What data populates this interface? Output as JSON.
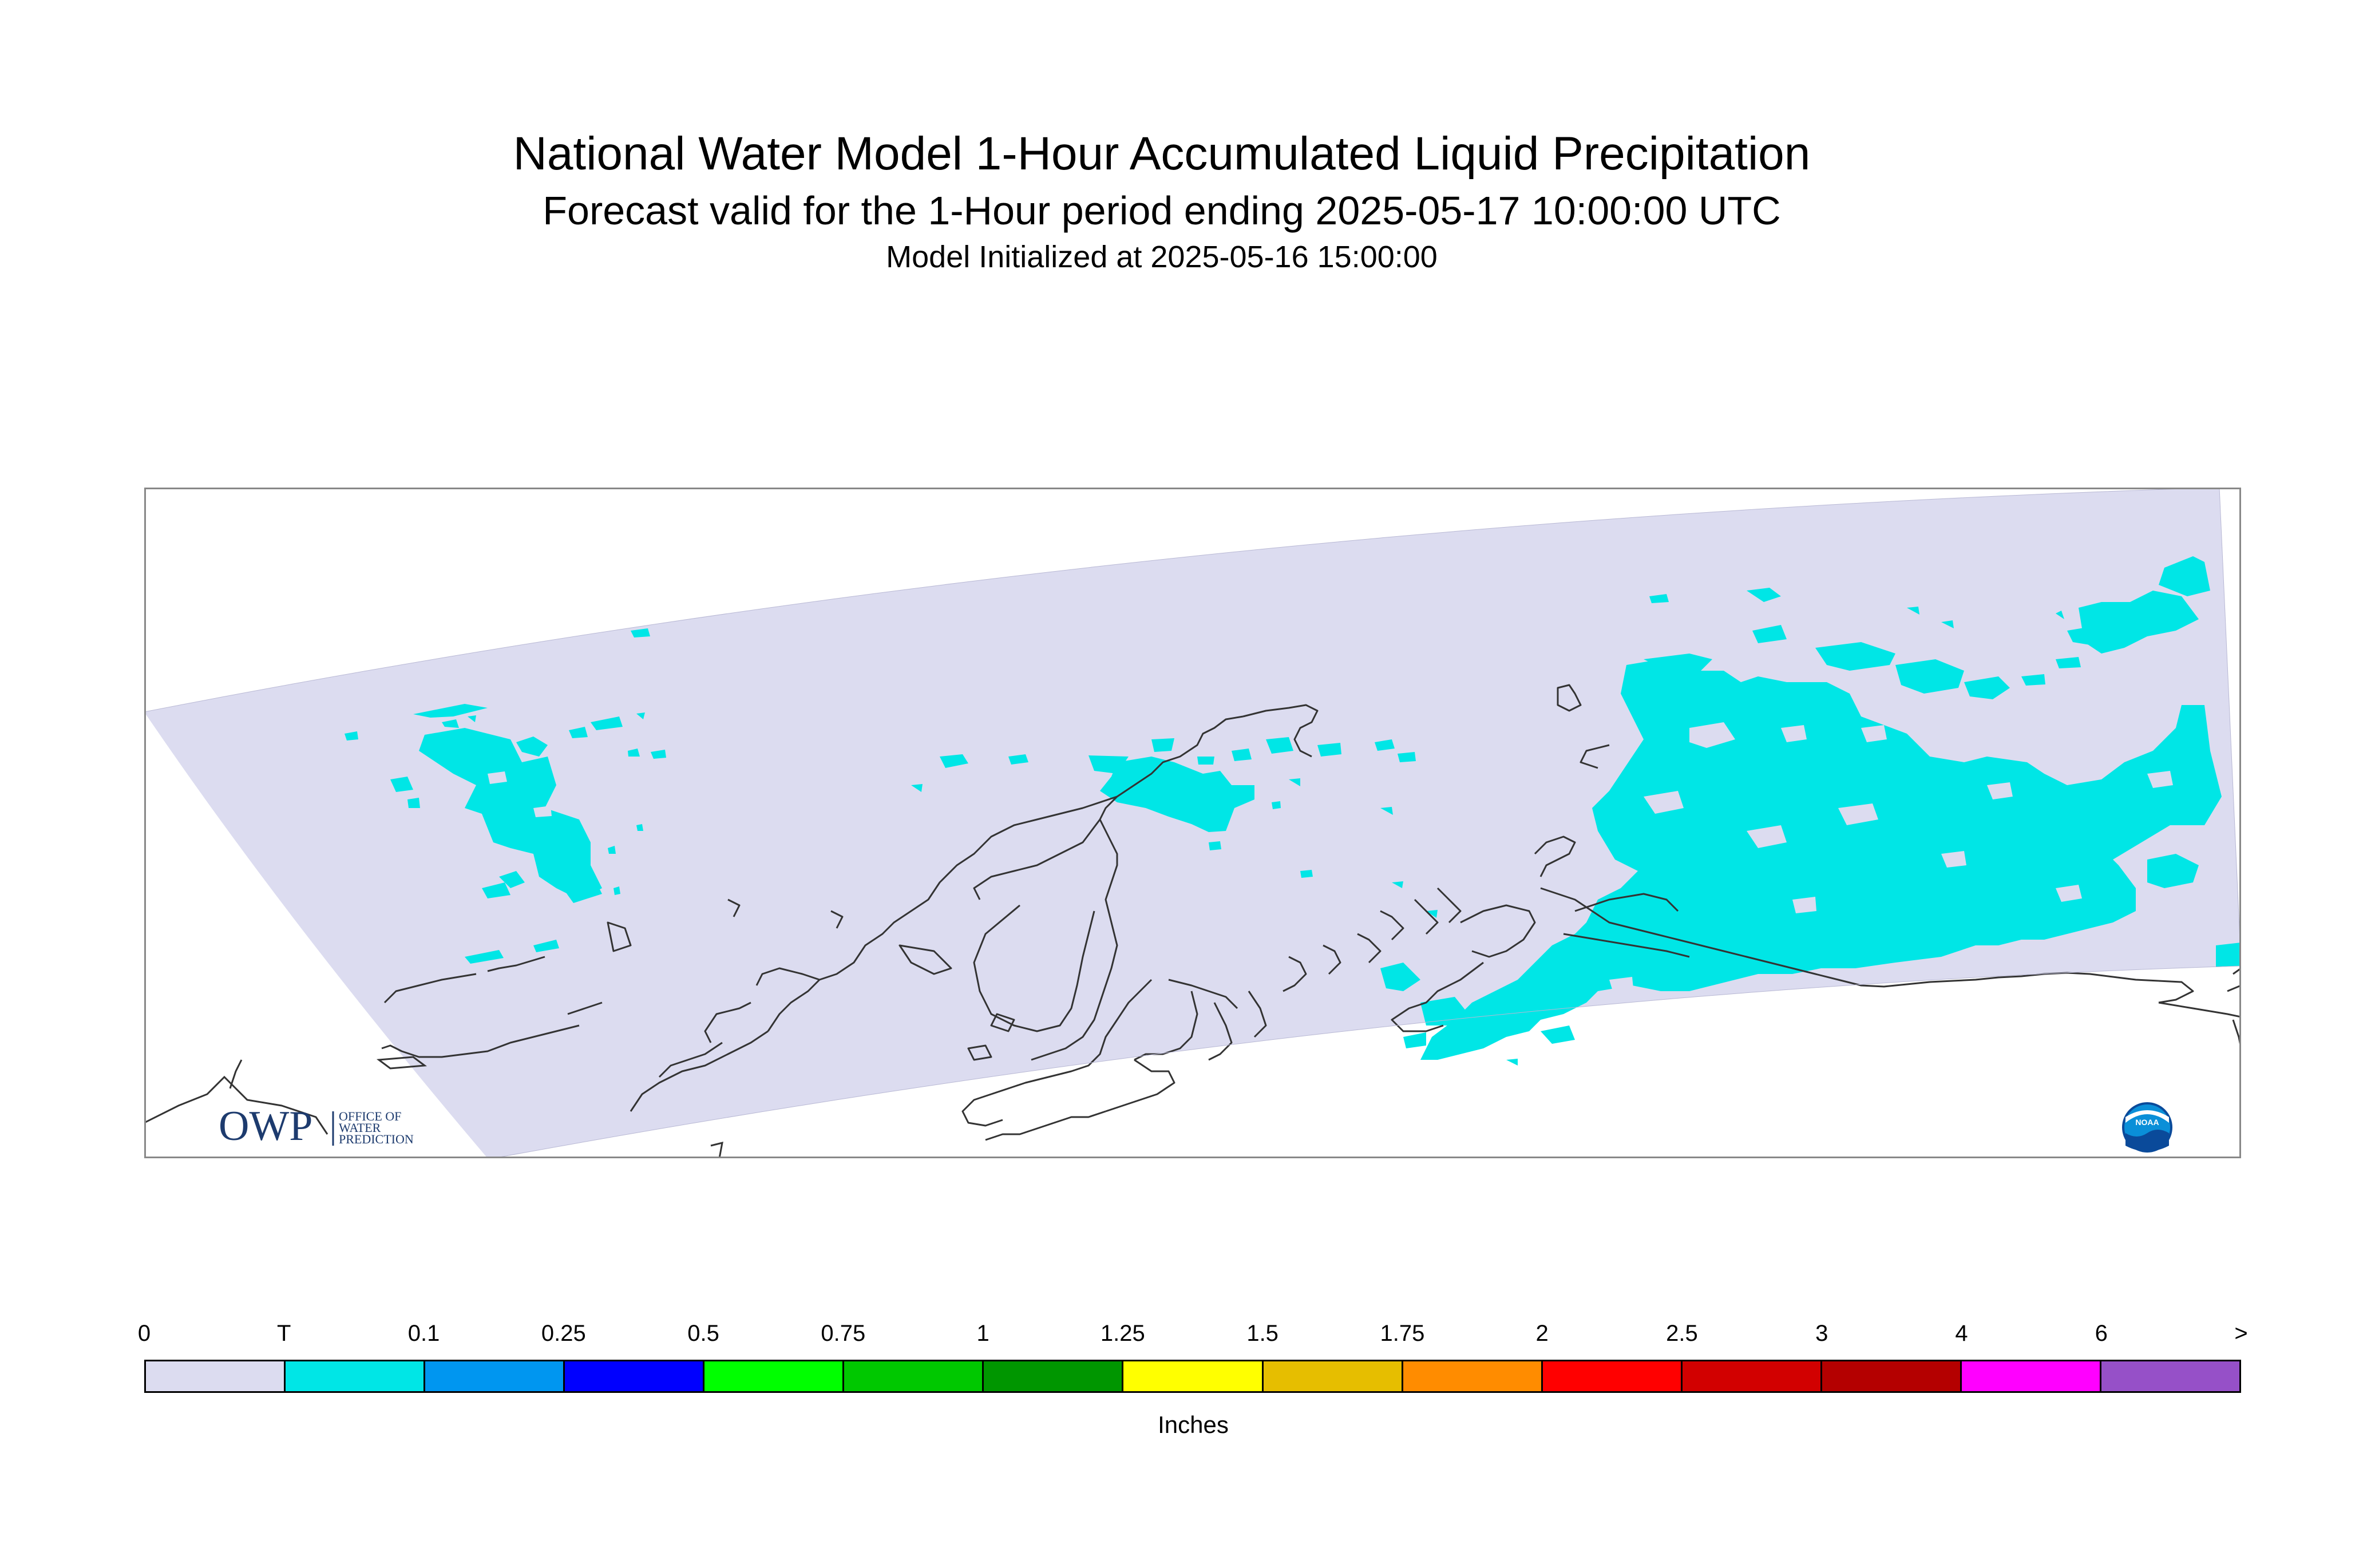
{
  "title": "National Water Model 1-Hour Accumulated Liquid Precipitation",
  "subtitle": "Forecast valid for the 1-Hour period ending 2025-05-17 10:00:00 UTC",
  "initialized": "Model Initialized at 2025-05-16 15:00:00",
  "logos": {
    "owp": {
      "mark": "OWP",
      "line1": "OFFICE OF",
      "line2": "WATER",
      "line3": "PREDICTION"
    },
    "noaa": {
      "mark": "NOAA"
    }
  },
  "colorbar": {
    "labels": [
      "0",
      "T",
      "0.1",
      "0.25",
      "0.5",
      "0.75",
      "1",
      "1.25",
      "1.5",
      "1.75",
      "2",
      "2.5",
      "3",
      "4",
      "6",
      ">"
    ],
    "colors": [
      "#dcdcf0",
      "#00e6e6",
      "#0096f0",
      "#0000ff",
      "#00ff00",
      "#00c800",
      "#009600",
      "#ffff00",
      "#e6be00",
      "#ff8c00",
      "#ff0000",
      "#d20000",
      "#b40000",
      "#ff00ff",
      "#9650c8"
    ],
    "units": "Inches"
  },
  "colors": {
    "no_precip": "#dcdcf0",
    "trace": "#00e6e6",
    "coastline": "#333333",
    "frame": "#888888"
  }
}
